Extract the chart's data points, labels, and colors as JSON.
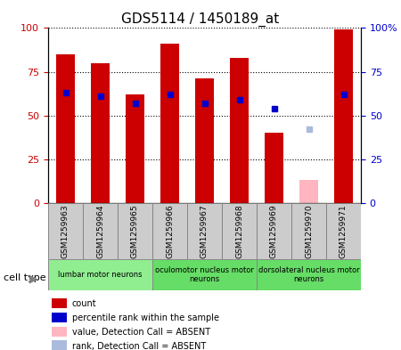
{
  "title": "GDS5114 / 1450189_at",
  "samples": [
    "GSM1259963",
    "GSM1259964",
    "GSM1259965",
    "GSM1259966",
    "GSM1259967",
    "GSM1259968",
    "GSM1259969",
    "GSM1259970",
    "GSM1259971"
  ],
  "red_bars": [
    85,
    80,
    62,
    91,
    71,
    83,
    40,
    0,
    99
  ],
  "blue_dots": [
    63,
    61,
    57,
    62,
    57,
    59,
    54,
    0,
    62
  ],
  "pink_bar": [
    0,
    0,
    0,
    0,
    0,
    0,
    0,
    13,
    0
  ],
  "lavender_dot": [
    0,
    0,
    0,
    0,
    0,
    0,
    0,
    42,
    0
  ],
  "absent_flags": [
    false,
    false,
    false,
    false,
    false,
    false,
    false,
    true,
    false
  ],
  "cell_groups": [
    {
      "label": "lumbar motor neurons",
      "start": 0,
      "end": 3,
      "color": "#90EE90"
    },
    {
      "label": "oculomotor nucleus motor\nneurons",
      "start": 3,
      "end": 6,
      "color": "#66DD66"
    },
    {
      "label": "dorsolateral nucleus motor\nneurons",
      "start": 6,
      "end": 9,
      "color": "#66DD66"
    }
  ],
  "ylim": [
    0,
    100
  ],
  "ylabel_left": "",
  "ylabel_right": "",
  "legend_items": [
    {
      "label": "count",
      "color": "#CC0000",
      "marker": "s"
    },
    {
      "label": "percentile rank within the sample",
      "color": "#0000CC",
      "marker": "s"
    },
    {
      "label": "value, Detection Call = ABSENT",
      "color": "#FFB6C1",
      "marker": "s"
    },
    {
      "label": "rank, Detection Call = ABSENT",
      "color": "#B0C4DE",
      "marker": "s"
    }
  ],
  "bar_color": "#CC0000",
  "dot_color": "#0000CC",
  "pink_color": "#FFB6C1",
  "lavender_color": "#AABBDD",
  "bg_color": "#FFFFFF",
  "tick_color_left": "#CC0000",
  "tick_color_right": "#0000CC",
  "cell_type_label": "cell type"
}
